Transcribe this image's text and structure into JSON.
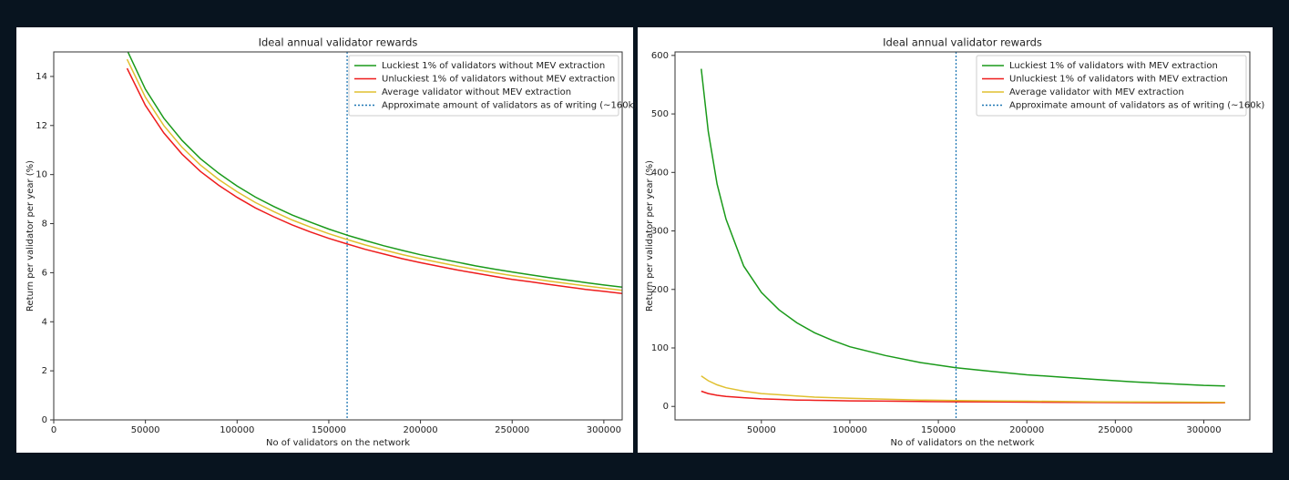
{
  "chart_data": [
    {
      "type": "line",
      "title": "Ideal annual validator rewards",
      "x_label": "No of validators on the network",
      "y_label": "Return per validator per year (%)",
      "x": [
        40000,
        50000,
        60000,
        70000,
        80000,
        90000,
        100000,
        110000,
        120000,
        130000,
        140000,
        150000,
        160000,
        170000,
        180000,
        190000,
        200000,
        210000,
        220000,
        230000,
        240000,
        250000,
        260000,
        270000,
        280000,
        290000,
        300000,
        310000
      ],
      "series": [
        {
          "name": "Luckiest 1% of validators without MEV extraction",
          "color": "#1a9a1a",
          "values": [
            15.07,
            13.48,
            12.3,
            11.39,
            10.65,
            10.05,
            9.53,
            9.08,
            8.7,
            8.35,
            8.06,
            7.78,
            7.53,
            7.31,
            7.1,
            6.91,
            6.73,
            6.58,
            6.43,
            6.28,
            6.15,
            6.03,
            5.91,
            5.8,
            5.7,
            5.6,
            5.5,
            5.41
          ]
        },
        {
          "name": "Unluckiest 1% of validators without MEV extraction",
          "color": "#ee1c1c",
          "values": [
            14.33,
            12.82,
            11.7,
            10.83,
            10.13,
            9.56,
            9.07,
            8.64,
            8.28,
            7.95,
            7.66,
            7.4,
            7.17,
            6.95,
            6.76,
            6.57,
            6.41,
            6.26,
            6.11,
            5.98,
            5.85,
            5.73,
            5.63,
            5.52,
            5.42,
            5.32,
            5.24,
            5.15
          ]
        },
        {
          "name": "Average validator without MEV extraction",
          "color": "#e0c030",
          "values": [
            14.7,
            13.15,
            12.0,
            11.11,
            10.39,
            9.8,
            9.3,
            8.86,
            8.49,
            8.15,
            7.86,
            7.59,
            7.35,
            7.13,
            6.93,
            6.74,
            6.57,
            6.42,
            6.27,
            6.13,
            6.0,
            5.88,
            5.77,
            5.66,
            5.56,
            5.46,
            5.37,
            5.28
          ]
        }
      ],
      "vline": {
        "x": 160000,
        "label": "Approximate amount of validators as of writing (~160k)",
        "color": "#1f77b4"
      },
      "xlim": [
        0,
        310000
      ],
      "xticks": [
        0,
        50000,
        100000,
        150000,
        200000,
        250000,
        300000
      ],
      "ylim": [
        0,
        15
      ],
      "yticks": [
        0,
        2,
        4,
        6,
        8,
        10,
        12,
        14
      ],
      "legend": "upper right"
    },
    {
      "type": "line",
      "title": "Ideal annual validator rewards",
      "x_label": "No of validators on the network",
      "y_label": "Return per validator per year (%)",
      "x": [
        16000,
        20000,
        25000,
        30000,
        40000,
        50000,
        60000,
        70000,
        80000,
        90000,
        100000,
        120000,
        140000,
        160000,
        180000,
        200000,
        220000,
        240000,
        260000,
        280000,
        300000,
        312000
      ],
      "series": [
        {
          "name": "Luckiest 1% of validators with MEV extraction",
          "color": "#1a9a1a",
          "values": [
            577,
            470,
            380,
            320,
            240,
            195,
            165,
            143,
            126,
            113,
            102,
            87,
            75,
            66,
            60,
            54,
            50,
            46,
            42,
            39,
            36,
            35
          ]
        },
        {
          "name": "Unluckiest 1% of validators with MEV extraction",
          "color": "#ee1c1c",
          "values": [
            26,
            22,
            19,
            17,
            15,
            13,
            12,
            11,
            10.5,
            10,
            9.5,
            9,
            8.5,
            8,
            7.7,
            7.4,
            7.1,
            6.8,
            6.6,
            6.4,
            6.2,
            6.1
          ]
        },
        {
          "name": "Average validator with MEV extraction",
          "color": "#e0c030",
          "values": [
            52,
            44,
            37,
            32,
            26,
            22,
            20,
            18,
            16,
            15,
            14,
            12.5,
            11,
            10,
            9.5,
            9,
            8.5,
            8,
            7.8,
            7.5,
            7.2,
            7
          ]
        }
      ],
      "vline": {
        "x": 160000,
        "label": "Approximate amount of validators as of writing (~160k)",
        "color": "#1f77b4"
      },
      "xlim": [
        1200,
        326000
      ],
      "xticks": [
        50000,
        100000,
        150000,
        200000,
        250000,
        300000
      ],
      "ylim": [
        -23,
        606
      ],
      "yticks": [
        0,
        100,
        200,
        300,
        400,
        500,
        600
      ],
      "legend": "upper right"
    }
  ]
}
